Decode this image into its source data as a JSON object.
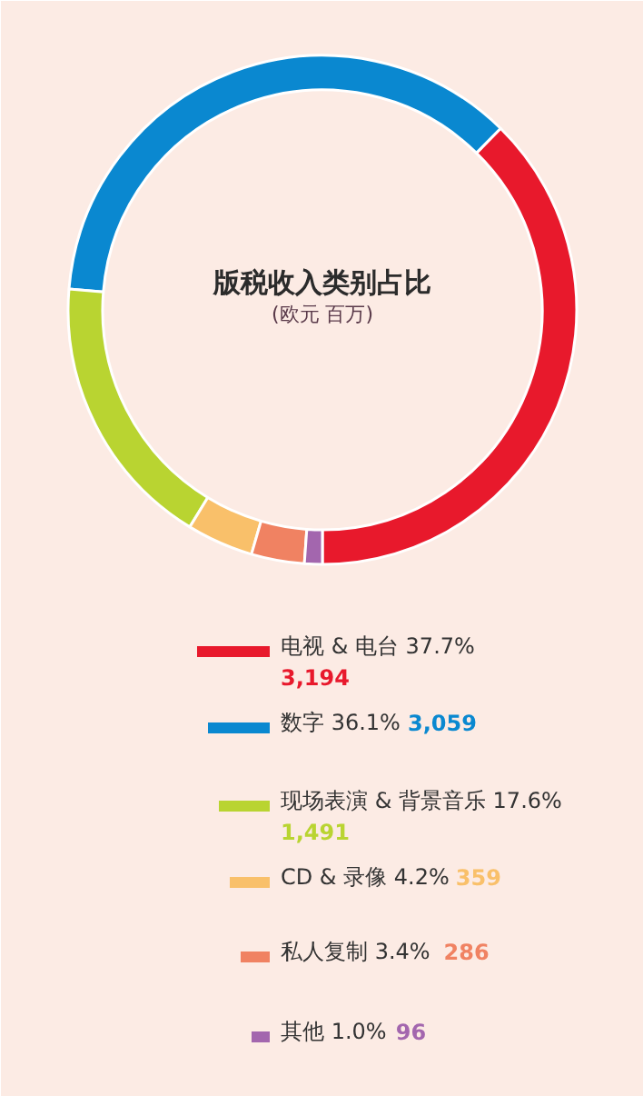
{
  "chart_data": {
    "type": "donut",
    "title": "版税收入类别占比",
    "subtitle": "(欧元 百万)",
    "categories": [
      "电视 & 电台 37.7%",
      "数字 36.1%",
      "现场表演 & 背景音乐 17.6%",
      "CD & 录像 4.2%",
      "私人复制 3.4%",
      "其他 1.0%"
    ],
    "values": [
      3194,
      3059,
      1491,
      359,
      286,
      96
    ],
    "value_labels": [
      "3,194",
      "3,059",
      "1,491",
      "359",
      "286",
      "96"
    ],
    "colors": [
      "#e8192c",
      "#0a88d0",
      "#b9d431",
      "#f9c06a",
      "#f08262",
      "#a366ae"
    ],
    "legend": "bottom"
  }
}
